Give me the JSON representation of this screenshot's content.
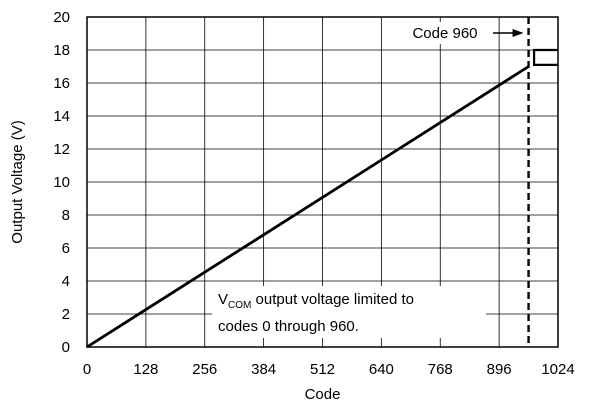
{
  "chart_data": {
    "type": "line",
    "xlabel": "Code",
    "ylabel": "Output Voltage (V)",
    "xlim": [
      0,
      1024
    ],
    "ylim": [
      0,
      20
    ],
    "x_ticks": [
      0,
      128,
      256,
      384,
      512,
      640,
      768,
      896,
      1024
    ],
    "y_ticks": [
      0,
      2,
      4,
      6,
      8,
      10,
      12,
      14,
      16,
      18,
      20
    ],
    "grid": true,
    "series": [
      {
        "x": [
          0,
          960
        ],
        "y": [
          0,
          17.0
        ]
      }
    ],
    "clamp_box": {
      "x": [
        972,
        1024
      ],
      "y": [
        17.1,
        18.0
      ]
    },
    "reference_line": {
      "x": 960,
      "style": "dashed"
    },
    "annotations": {
      "code_label": "Code 960",
      "note_prefix": "V",
      "note_subscript": "COM",
      "note_line1_rest": " output voltage limited to",
      "note_line2": "codes 0 through 960."
    }
  }
}
